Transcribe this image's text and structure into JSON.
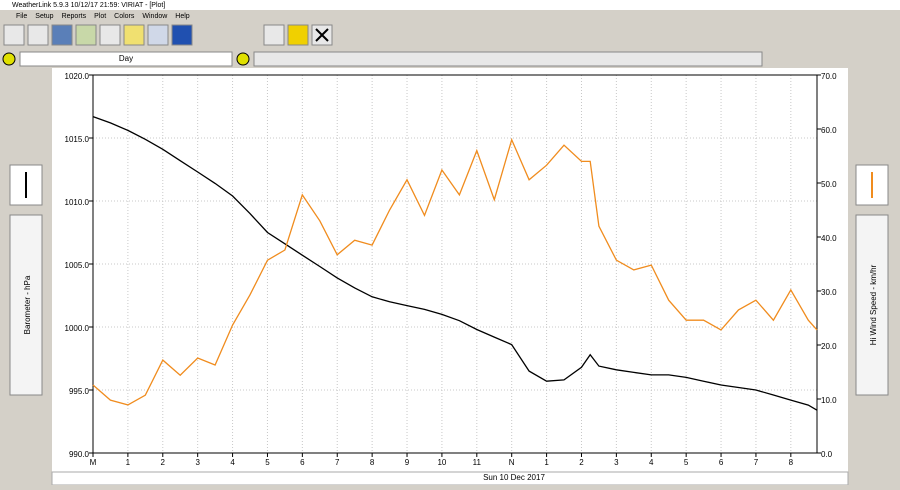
{
  "window": {
    "title": "WeatherLink 5.9.3  10/12/17  21:59: VIRIAT - [Plot]",
    "menu": [
      "File",
      "Setup",
      "Reports",
      "Plot",
      "Colors",
      "Window",
      "Help"
    ]
  },
  "zoom": {
    "label": "Day"
  },
  "chart_data": {
    "type": "line",
    "y_label": "Barometer - hPa",
    "y2_label": "Hi Wind Speed - km/hr",
    "x_label": "Sun 10 Dec 2017",
    "x": [
      0,
      0.5,
      1,
      1.5,
      2,
      2.5,
      3,
      3.5,
      4,
      4.5,
      5,
      5.5,
      6,
      6.5,
      7,
      7.5,
      8,
      8.5,
      9,
      9.5,
      10,
      10.5,
      11,
      11.5,
      12,
      12.5,
      13,
      13.5,
      14,
      14.25,
      14.5,
      15,
      15.5,
      16,
      16.5,
      17,
      17.5,
      18,
      18.5,
      19,
      19.5,
      20,
      20.5,
      20.75
    ],
    "xlim": [
      0,
      20.75
    ],
    "xticks": [
      {
        "value": 0,
        "label": "M"
      },
      1,
      2,
      3,
      4,
      5,
      6,
      7,
      8,
      9,
      10,
      11,
      {
        "value": 12,
        "label": "N"
      },
      {
        "value": 13,
        "label": "1"
      },
      {
        "value": 14,
        "label": "2"
      },
      {
        "value": 15,
        "label": "3"
      },
      {
        "value": 16,
        "label": "4"
      },
      {
        "value": 17,
        "label": "5"
      },
      {
        "value": 18,
        "label": "6"
      },
      {
        "value": 19,
        "label": "7"
      },
      {
        "value": 20,
        "label": "8"
      }
    ],
    "ylim": [
      990,
      1020
    ],
    "yticks": [
      {
        "value": 990,
        "label": "990.0"
      },
      {
        "value": 995,
        "label": "995.0"
      },
      {
        "value": 1000,
        "label": "1000.0"
      },
      {
        "value": 1005,
        "label": "1005.0"
      },
      {
        "value": 1010,
        "label": "1010.0"
      },
      {
        "value": 1015,
        "label": "1015.0"
      },
      {
        "value": 1020,
        "label": "1020.0"
      }
    ],
    "y2lim": [
      0,
      70
    ],
    "y2ticks": [
      {
        "value": 0,
        "label": "0.0"
      },
      {
        "value": 10,
        "label": "10.0"
      },
      {
        "value": 20,
        "label": "20.0"
      },
      {
        "value": 30,
        "label": "30.0"
      },
      {
        "value": 40,
        "label": "40.0"
      },
      {
        "value": 50,
        "label": "50.0"
      },
      {
        "value": 60,
        "label": "60.0"
      },
      {
        "value": 70,
        "label": "70.0"
      }
    ],
    "grid": true,
    "series": [
      {
        "color": "#000000",
        "axis": "y",
        "values": [
          1016.7,
          1016.2,
          1015.6,
          1014.9,
          1014.1,
          1013.2,
          1012.3,
          1011.4,
          1010.4,
          1009.0,
          1007.5,
          1006.6,
          1005.7,
          1004.8,
          1003.9,
          1003.1,
          1002.4,
          1002.0,
          1001.7,
          1001.4,
          1001.0,
          1000.5,
          999.8,
          999.2,
          998.6,
          996.5,
          995.7,
          995.8,
          996.8,
          997.8,
          996.9,
          996.6,
          996.4,
          996.2,
          996.2,
          996.0,
          995.7,
          995.4,
          995.2,
          995.0,
          994.6,
          994.2,
          993.8,
          993.4
        ]
      },
      {
        "color": "#f08c1e",
        "axis": "y2",
        "values": [
          12.6,
          9.8,
          8.9,
          10.7,
          17.2,
          14.4,
          17.6,
          16.3,
          23.7,
          29.3,
          35.7,
          37.6,
          47.8,
          43,
          36.7,
          39.4,
          38.5,
          45,
          50.6,
          44,
          52.4,
          47.8,
          56,
          46.9,
          58,
          50.6,
          53.3,
          57,
          54,
          54,
          42,
          35.7,
          33.9,
          34.8,
          28.3,
          24.6,
          24.6,
          22.8,
          26.5,
          28.3,
          24.6,
          30.2,
          24.6,
          22.8
        ]
      }
    ]
  }
}
